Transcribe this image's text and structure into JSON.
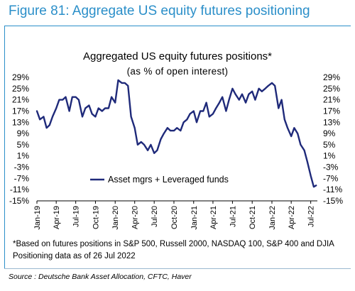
{
  "figure_title": "Figure 81: Aggregate US equity futures positioning",
  "footnotes": [
    "*Based on futures positions in S&P 500, Russell 2000, NASDAQ 100, S&P 400 and DJIA",
    "Positioning data as of 26 Jul 2022"
  ],
  "source": "Source : Deutsche Bank Asset Allocation, CFTC, Haver",
  "colors": {
    "accent": "#2b8fc9",
    "series": "#1f2a7a"
  },
  "chart_data": {
    "type": "line",
    "title": "Aggregated US equity futures positions*",
    "subtitle": "(as % of open interest)",
    "xlabel": "",
    "ylabel": "",
    "ylim": [
      -15,
      29
    ],
    "yticks": [
      "29%",
      "25%",
      "21%",
      "17%",
      "13%",
      "9%",
      "5%",
      "1%",
      "-3%",
      "-7%",
      "-11%",
      "-15%"
    ],
    "xticks": [
      "Jan-19",
      "Apr-19",
      "Jul-19",
      "Oct-19",
      "Jan-20",
      "Apr-20",
      "Jul-20",
      "Oct-20",
      "Jan-21",
      "Apr-21",
      "Jul-21",
      "Oct-21",
      "Jan-22",
      "Apr-22",
      "Jul-22"
    ],
    "legend": "inside-lower-center",
    "grid": false,
    "series": [
      {
        "name": "Asset mgrs + Leveraged funds",
        "x": [
          "2019-01-01",
          "2019-01-15",
          "2019-02-01",
          "2019-02-15",
          "2019-03-01",
          "2019-03-15",
          "2019-04-01",
          "2019-04-15",
          "2019-05-01",
          "2019-05-15",
          "2019-06-01",
          "2019-06-15",
          "2019-07-01",
          "2019-07-15",
          "2019-08-01",
          "2019-08-15",
          "2019-09-01",
          "2019-09-15",
          "2019-10-01",
          "2019-10-15",
          "2019-11-01",
          "2019-11-15",
          "2019-12-01",
          "2019-12-15",
          "2020-01-01",
          "2020-01-15",
          "2020-02-01",
          "2020-02-15",
          "2020-03-01",
          "2020-03-15",
          "2020-04-01",
          "2020-04-15",
          "2020-05-01",
          "2020-05-15",
          "2020-06-01",
          "2020-06-15",
          "2020-07-01",
          "2020-07-15",
          "2020-08-01",
          "2020-08-15",
          "2020-09-01",
          "2020-09-15",
          "2020-10-01",
          "2020-10-15",
          "2020-11-01",
          "2020-11-15",
          "2020-12-01",
          "2020-12-15",
          "2021-01-01",
          "2021-01-15",
          "2021-02-01",
          "2021-02-15",
          "2021-03-01",
          "2021-03-15",
          "2021-04-01",
          "2021-04-15",
          "2021-05-01",
          "2021-05-15",
          "2021-06-01",
          "2021-06-15",
          "2021-07-01",
          "2021-07-15",
          "2021-08-01",
          "2021-08-15",
          "2021-09-01",
          "2021-09-15",
          "2021-10-01",
          "2021-10-15",
          "2021-11-01",
          "2021-11-15",
          "2021-12-01",
          "2021-12-15",
          "2022-01-01",
          "2022-01-15",
          "2022-02-01",
          "2022-02-15",
          "2022-03-01",
          "2022-03-15",
          "2022-04-01",
          "2022-04-15",
          "2022-05-01",
          "2022-05-15",
          "2022-06-01",
          "2022-06-15",
          "2022-07-01",
          "2022-07-15",
          "2022-07-26"
        ],
        "values": [
          17,
          14,
          15,
          11,
          12,
          15,
          18,
          21,
          21,
          22,
          17,
          22,
          22,
          21,
          15,
          18,
          19,
          16,
          15,
          18,
          17,
          18,
          18,
          22,
          20,
          28,
          27,
          27,
          26,
          15,
          11,
          5,
          6,
          5,
          3,
          5,
          2,
          3,
          7,
          9,
          11,
          10,
          10,
          11,
          10,
          13,
          14,
          16,
          17,
          13,
          17,
          17,
          20,
          15,
          16,
          18,
          20,
          22,
          17,
          21,
          25,
          23,
          21,
          23,
          20,
          23,
          24,
          21,
          25,
          24,
          25,
          26,
          27,
          26,
          18,
          21,
          14,
          11,
          8,
          11,
          9,
          5,
          3,
          -1,
          -6,
          -10,
          -9.5
        ]
      }
    ]
  }
}
